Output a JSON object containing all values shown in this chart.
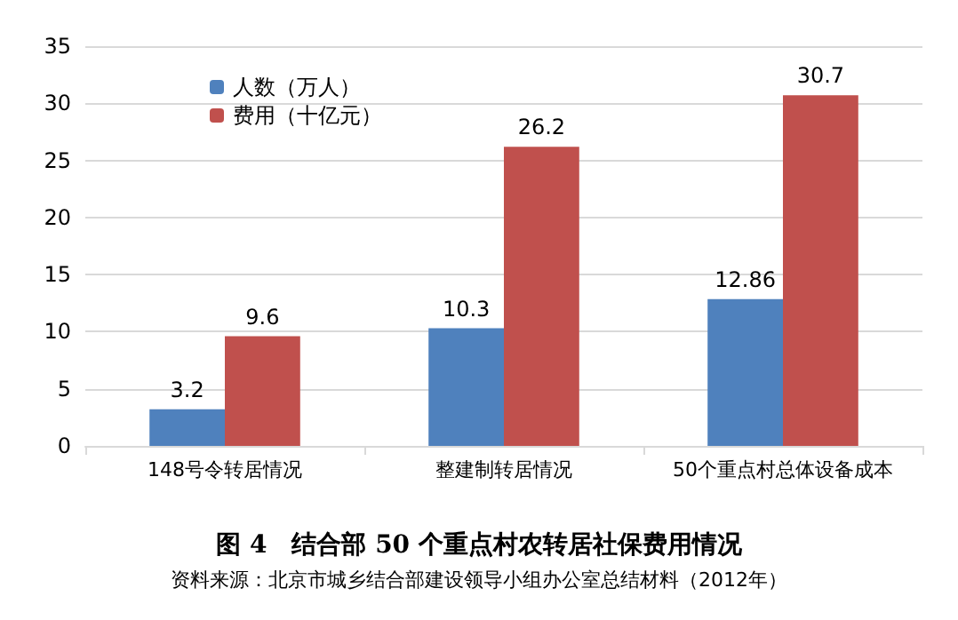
{
  "chart_data": {
    "type": "bar",
    "title": "图 4　结合部 50 个重点村农转居社保费用情况",
    "annotations": [
      "资料来源：北京市城乡结合部建设领导小组办公室总结材料（2012年）"
    ],
    "categories": [
      "148号令转居情况",
      "整建制转居情况",
      "50个重点村总体设备成本"
    ],
    "series": [
      {
        "name": "人数（万人）",
        "color": "#4f81bd",
        "values": [
          3.2,
          10.3,
          12.86
        ]
      },
      {
        "name": "费用（十亿元）",
        "color": "#c0504d",
        "values": [
          9.6,
          26.2,
          30.7
        ]
      }
    ],
    "ylim": [
      0,
      35
    ],
    "yticks": [
      0,
      5,
      10,
      15,
      20,
      25,
      30,
      35
    ],
    "grid": "y",
    "legend": "top left",
    "data_labels": true
  }
}
